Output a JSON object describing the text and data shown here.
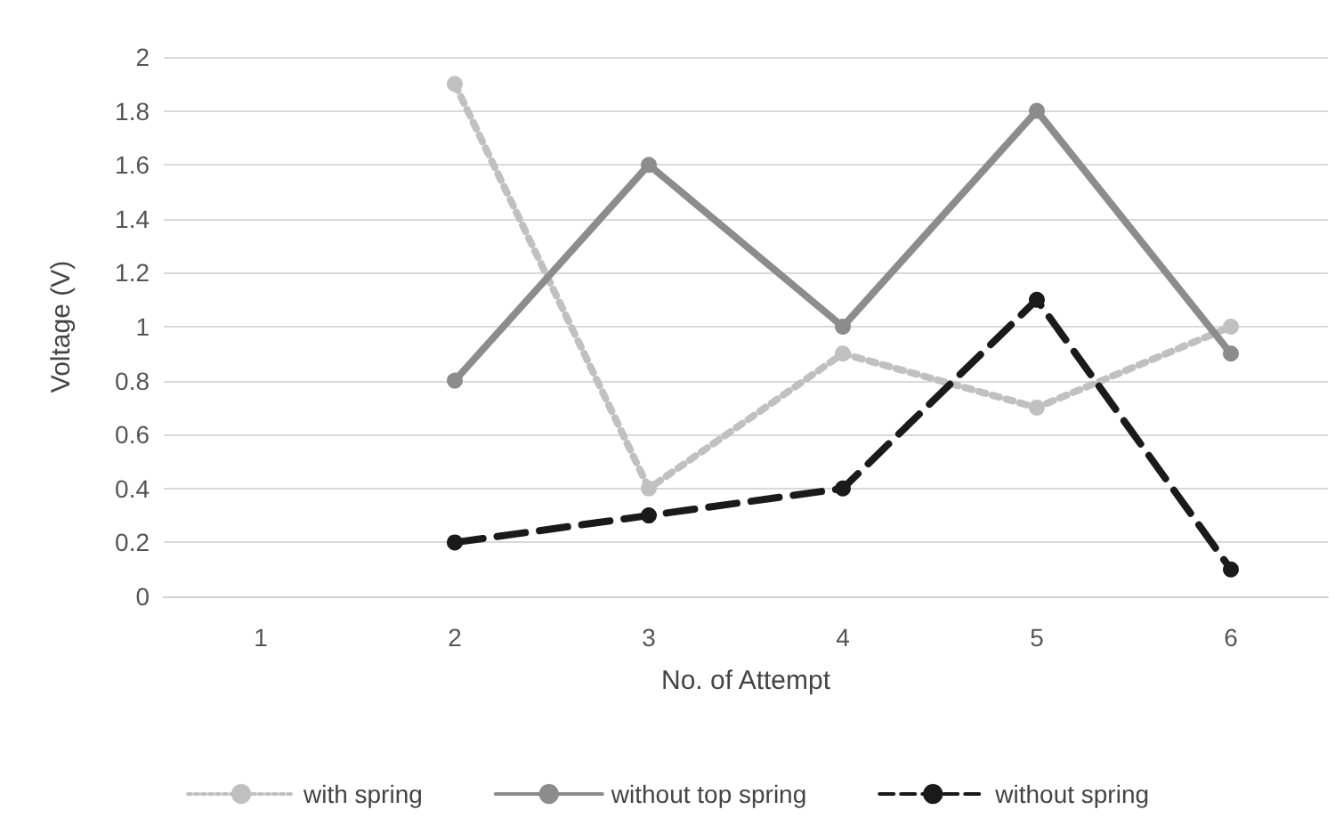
{
  "chart_data": {
    "type": "line",
    "xlabel": "No. of Attempt",
    "ylabel": "Voltage (V)",
    "categories": [
      "1",
      "2",
      "3",
      "4",
      "5",
      "6"
    ],
    "series": [
      {
        "name": "with spring",
        "color": "#c0c0c0",
        "line_style": "dotted",
        "values": [
          null,
          1.9,
          0.4,
          0.9,
          0.7,
          1.0
        ]
      },
      {
        "name": "without top spring",
        "color": "#8c8c8c",
        "line_style": "solid",
        "values": [
          null,
          0.8,
          1.6,
          1.0,
          1.8,
          0.9
        ]
      },
      {
        "name": "without spring",
        "color": "#1a1a1a",
        "line_style": "dashed",
        "values": [
          null,
          0.2,
          0.3,
          0.4,
          1.1,
          0.1
        ]
      }
    ],
    "ylim": [
      0,
      2
    ],
    "yticks": [
      0,
      0.2,
      0.4,
      0.6,
      0.8,
      1,
      1.2,
      1.4,
      1.6,
      1.8,
      2
    ],
    "grid": "y",
    "legend": "bottom",
    "marker": "circle"
  }
}
